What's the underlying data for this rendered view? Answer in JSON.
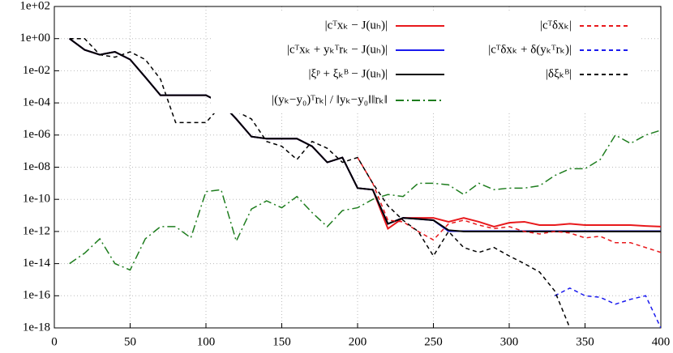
{
  "chart_data": {
    "type": "line",
    "log_y": true,
    "grid": true,
    "legend_position": "top",
    "xlim": [
      0,
      400
    ],
    "xticks": [
      0,
      50,
      100,
      150,
      200,
      250,
      300,
      350,
      400
    ],
    "ylim": [
      1e-18,
      100
    ],
    "yticks": [
      {
        "value": 100,
        "label": "1e+02"
      },
      {
        "value": 1,
        "label": "1e+00"
      },
      {
        "value": 0.01,
        "label": "1e-02"
      },
      {
        "value": 0.0001,
        "label": "1e-04"
      },
      {
        "value": 1e-06,
        "label": "1e-06"
      },
      {
        "value": 1e-08,
        "label": "1e-08"
      },
      {
        "value": 1e-10,
        "label": "1e-10"
      },
      {
        "value": 1e-12,
        "label": "1e-12"
      },
      {
        "value": 1e-14,
        "label": "1e-14"
      },
      {
        "value": 1e-16,
        "label": "1e-16"
      },
      {
        "value": 1e-18,
        "label": "1e-18"
      }
    ],
    "x": [
      10,
      20,
      30,
      40,
      50,
      60,
      70,
      80,
      90,
      100,
      110,
      120,
      130,
      140,
      150,
      160,
      170,
      180,
      190,
      200,
      210,
      220,
      230,
      240,
      250,
      260,
      270,
      280,
      290,
      300,
      310,
      320,
      330,
      340,
      350,
      360,
      370,
      380,
      390,
      400
    ],
    "series": [
      {
        "name": "|cᵀxₖ − J(uₕ)|",
        "color": "#e8191c",
        "style": "solid",
        "values": [
          1,
          0.2,
          0.1,
          0.15,
          0.05,
          0.004,
          0.0003,
          0.0003,
          0.0003,
          0.0003,
          0.0001,
          1e-05,
          8e-07,
          6e-07,
          6e-07,
          6e-07,
          2e-07,
          2e-08,
          4e-08,
          5e-10,
          4e-10,
          1.5e-12,
          7e-12,
          7e-12,
          7e-12,
          4e-12,
          7e-12,
          4e-12,
          2e-12,
          3.5e-12,
          4e-12,
          2.5e-12,
          2.5e-12,
          3e-12,
          2.5e-12,
          2.5e-12,
          2.5e-12,
          2.5e-12,
          2.2e-12,
          2e-12
        ]
      },
      {
        "name": "|cᵀxₖ + yₖᵀrₖ − J(uₕ)|",
        "color": "#1a1aee",
        "style": "solid",
        "values": [
          1,
          0.2,
          0.1,
          0.15,
          0.05,
          0.004,
          0.0003,
          0.0003,
          0.0003,
          0.0003,
          0.0001,
          1e-05,
          8e-07,
          6e-07,
          6e-07,
          6e-07,
          2e-07,
          2e-08,
          4e-08,
          5e-10,
          4e-10,
          3e-12,
          7e-12,
          6e-12,
          5e-12,
          1.05e-12,
          1.05e-12,
          1.05e-12,
          1.05e-12,
          1.05e-12,
          1.05e-12,
          1.05e-12,
          1.05e-12,
          1.05e-12,
          1.05e-12,
          1.05e-12,
          1.05e-12,
          1.05e-12,
          1.05e-12,
          1.05e-12
        ]
      },
      {
        "name": "|ξᵖ + ξₖᴮ − J(uₕ)|",
        "color": "#000000",
        "style": "solid",
        "values": [
          1,
          0.2,
          0.1,
          0.15,
          0.05,
          0.004,
          0.0003,
          0.0003,
          0.0003,
          0.0003,
          0.0001,
          1e-05,
          8e-07,
          6e-07,
          6e-07,
          6e-07,
          2e-07,
          2e-08,
          4e-08,
          5e-10,
          4e-10,
          3e-12,
          7e-12,
          6e-12,
          5e-12,
          1.2e-12,
          1e-12,
          1e-12,
          1e-12,
          1e-12,
          1e-12,
          1e-12,
          1e-12,
          1e-12,
          1e-12,
          1e-12,
          1e-12,
          1e-12,
          1e-12,
          1e-12
        ]
      },
      {
        "name": "|(yₖ−y₀)ᵀrₖ| / ‖yₖ−y₀‖‖rₖ‖",
        "color": "#1e7d1e",
        "style": "dashdot",
        "values": [
          1e-14,
          4.5e-14,
          3.5e-13,
          1e-14,
          4e-15,
          3.5e-13,
          2e-12,
          2e-12,
          4e-13,
          3e-10,
          4e-10,
          2.5e-13,
          2.5e-11,
          8e-11,
          3e-11,
          1.5e-10,
          1.5e-11,
          2e-12,
          2e-11,
          3e-11,
          1e-10,
          2e-10,
          1.5e-10,
          1e-09,
          1e-09,
          8e-10,
          2e-10,
          1e-09,
          4e-10,
          5e-10,
          5e-10,
          7e-10,
          3e-09,
          8e-09,
          8e-09,
          3e-08,
          1e-06,
          3e-07,
          1e-06,
          2e-06
        ]
      },
      {
        "name": "|cᵀδxₖ|",
        "color": "#e8191c",
        "style": "dashed",
        "values": [
          null,
          null,
          null,
          null,
          null,
          null,
          null,
          null,
          null,
          null,
          null,
          null,
          null,
          null,
          null,
          null,
          null,
          null,
          null,
          4e-08,
          1e-09,
          5e-12,
          4e-12,
          1e-12,
          3e-13,
          3e-12,
          5e-12,
          2.5e-12,
          1.5e-12,
          2e-12,
          1e-12,
          7e-13,
          1e-12,
          8e-13,
          4e-13,
          5e-13,
          2e-13,
          2e-13,
          1e-13,
          5e-14
        ]
      },
      {
        "name": "|cᵀδxₖ + δ(yₖᵀrₖ)|",
        "color": "#1a1aee",
        "style": "dashed",
        "values": [
          null,
          null,
          null,
          null,
          null,
          null,
          null,
          null,
          null,
          null,
          null,
          null,
          null,
          null,
          null,
          null,
          null,
          null,
          null,
          null,
          null,
          null,
          null,
          null,
          null,
          null,
          null,
          null,
          null,
          null,
          null,
          null,
          1e-16,
          3e-16,
          1e-16,
          8e-17,
          3e-17,
          6e-17,
          1e-16,
          1e-18
        ]
      },
      {
        "name": "|δξₖᴮ|",
        "color": "#000000",
        "style": "dashed",
        "values": [
          1,
          1,
          0.1,
          0.07,
          0.15,
          0.05,
          0.003,
          6e-06,
          6e-06,
          6e-06,
          7e-05,
          3e-05,
          1e-05,
          4e-07,
          2e-07,
          3e-08,
          4e-07,
          1.5e-07,
          2e-08,
          4e-08,
          1e-09,
          4e-11,
          5e-12,
          1e-12,
          3e-14,
          1e-12,
          1e-13,
          5e-14,
          1e-13,
          3e-14,
          1e-14,
          3e-15,
          2e-16,
          1e-18,
          null,
          null,
          null,
          null,
          null,
          null
        ]
      }
    ]
  }
}
